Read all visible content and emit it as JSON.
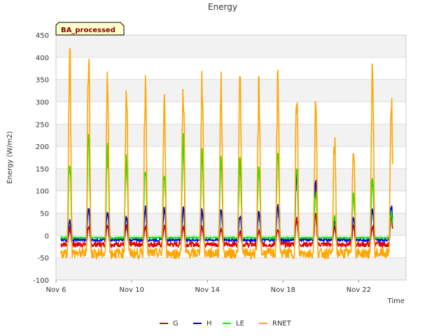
{
  "chart_data": {
    "type": "line",
    "title": "Energy",
    "badge": "BA_processed",
    "xlabel": "Time",
    "ylabel": "Energy (W/m2)",
    "ylim": [
      -100,
      450
    ],
    "yticks": [
      -100,
      -50,
      0,
      50,
      100,
      150,
      200,
      250,
      300,
      350,
      400,
      450
    ],
    "xlim": [
      6.0,
      24.5
    ],
    "xticks": [
      {
        "label": "Nov 6",
        "x": 6
      },
      {
        "label": "Nov 10",
        "x": 10
      },
      {
        "label": "Nov 14",
        "x": 14
      },
      {
        "label": "Nov 18",
        "x": 18
      },
      {
        "label": "Nov 22",
        "x": 22
      }
    ],
    "grid": "horizontal bands",
    "legend_position": "bottom",
    "series": [
      {
        "name": "G",
        "color": "#dd0000",
        "base": -20,
        "peaks": [
          15,
          20,
          25,
          20,
          20,
          20,
          20,
          20,
          15,
          10,
          10,
          15,
          40,
          45,
          20,
          20,
          20,
          40
        ],
        "spike": 1
      },
      {
        "name": "H",
        "color": "#0000dd",
        "base": -10,
        "peaks": [
          35,
          60,
          50,
          40,
          60,
          60,
          60,
          55,
          60,
          45,
          50,
          65,
          140,
          120,
          30,
          40,
          60,
          70
        ],
        "spike": 1
      },
      {
        "name": "LE",
        "color": "#00ee00",
        "base": -5,
        "peaks": [
          170,
          215,
          185,
          175,
          150,
          140,
          205,
          180,
          165,
          160,
          160,
          190,
          155,
          95,
          40,
          90,
          125,
          50
        ],
        "spike": 1
      },
      {
        "name": "RNET",
        "color": "#ffa500",
        "base": -40,
        "peaks": [
          410,
          405,
          345,
          330,
          345,
          285,
          335,
          350,
          325,
          350,
          325,
          330,
          310,
          290,
          210,
          210,
          375,
          300
        ],
        "spike": 1
      }
    ]
  }
}
